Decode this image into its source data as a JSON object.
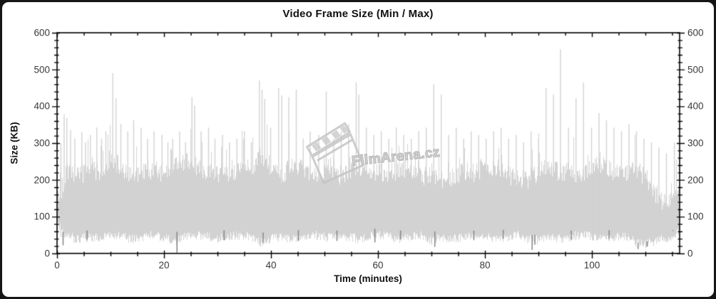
{
  "watermark": {
    "text": "FilmArena.cz",
    "icon": "clapperboard-icon"
  },
  "chart_data": {
    "type": "area",
    "title": "Video Frame Size (Min / Max)",
    "xlabel": "Time (minutes)",
    "ylabel": "Size (KB)",
    "xlim": [
      0,
      116.4
    ],
    "ylim": [
      0,
      600
    ],
    "x_major_ticks": [
      0,
      20,
      40,
      60,
      80,
      100
    ],
    "x_minor_tick_step": 5,
    "y_major_ticks": [
      0,
      100,
      200,
      300,
      400,
      500,
      600
    ],
    "y_minor_tick_step": 20,
    "right_axis_mirrors_left": true,
    "grid": false,
    "legend": "none",
    "colors": {
      "max_series": "#d2d2d2",
      "min_series": "#8a8a8a",
      "axis": "#000000",
      "tick_label": "#3a3a3a",
      "background": "#ffffff"
    },
    "series": [
      {
        "name": "Max",
        "color": "#d2d2d2",
        "representation": "dense noisy band read as lower/upper envelope (KB) plus isolated tall spikes",
        "t": [
          0,
          2,
          4,
          6,
          8,
          10,
          12,
          14,
          16,
          18,
          20,
          22,
          24,
          26,
          28,
          30,
          32,
          34,
          36,
          38,
          40,
          42,
          44,
          46,
          48,
          50,
          52,
          54,
          56,
          58,
          60,
          62,
          64,
          66,
          68,
          70,
          72,
          74,
          76,
          78,
          80,
          82,
          84,
          86,
          88,
          90,
          92,
          94,
          96,
          98,
          100,
          102,
          104,
          106,
          108,
          110,
          112,
          114,
          116
        ],
        "upper": [
          170,
          245,
          235,
          255,
          245,
          285,
          260,
          235,
          245,
          255,
          235,
          265,
          275,
          260,
          250,
          240,
          235,
          250,
          260,
          285,
          255,
          240,
          265,
          255,
          245,
          250,
          235,
          245,
          265,
          250,
          245,
          235,
          250,
          255,
          235,
          245,
          225,
          235,
          250,
          245,
          260,
          250,
          240,
          230,
          225,
          250,
          260,
          245,
          250,
          235,
          265,
          270,
          250,
          245,
          255,
          235,
          185,
          155,
          210
        ],
        "lower": [
          80,
          45,
          40,
          45,
          40,
          50,
          45,
          40,
          45,
          50,
          40,
          35,
          45,
          50,
          45,
          40,
          45,
          50,
          45,
          30,
          40,
          45,
          40,
          45,
          50,
          45,
          40,
          45,
          40,
          45,
          50,
          45,
          40,
          45,
          50,
          35,
          45,
          40,
          45,
          50,
          45,
          40,
          45,
          50,
          40,
          35,
          45,
          40,
          45,
          50,
          45,
          40,
          45,
          50,
          30,
          25,
          35,
          40,
          55
        ],
        "spikes": [
          [
            0.7,
            300
          ],
          [
            1.3,
            378
          ],
          [
            1.8,
            368
          ],
          [
            2.5,
            335
          ],
          [
            3.3,
            312
          ],
          [
            4.6,
            330
          ],
          [
            5.3,
            302
          ],
          [
            6.2,
            322
          ],
          [
            7.4,
            342
          ],
          [
            8.3,
            312
          ],
          [
            9.1,
            332
          ],
          [
            10.4,
            490
          ],
          [
            11.0,
            422
          ],
          [
            11.9,
            352
          ],
          [
            13.2,
            332
          ],
          [
            14.3,
            362
          ],
          [
            15.7,
            342
          ],
          [
            16.9,
            312
          ],
          [
            18.1,
            332
          ],
          [
            19.6,
            322
          ],
          [
            20.7,
            302
          ],
          [
            21.6,
            312
          ],
          [
            22.9,
            332
          ],
          [
            24.0,
            302
          ],
          [
            25.2,
            425
          ],
          [
            25.7,
            402
          ],
          [
            26.9,
            332
          ],
          [
            28.3,
            342
          ],
          [
            29.5,
            312
          ],
          [
            30.9,
            322
          ],
          [
            32.2,
            302
          ],
          [
            33.6,
            312
          ],
          [
            35.0,
            332
          ],
          [
            36.3,
            302
          ],
          [
            37.8,
            470
          ],
          [
            38.3,
            445
          ],
          [
            38.8,
            420
          ],
          [
            39.9,
            342
          ],
          [
            41.4,
            450
          ],
          [
            42.0,
            430
          ],
          [
            43.3,
            425
          ],
          [
            44.7,
            445
          ],
          [
            46.0,
            312
          ],
          [
            47.3,
            332
          ],
          [
            48.9,
            322
          ],
          [
            50.3,
            440
          ],
          [
            51.7,
            312
          ],
          [
            53.1,
            332
          ],
          [
            54.5,
            352
          ],
          [
            55.9,
            465
          ],
          [
            56.4,
            432
          ],
          [
            57.8,
            342
          ],
          [
            59.2,
            322
          ],
          [
            60.6,
            332
          ],
          [
            62.0,
            312
          ],
          [
            63.4,
            342
          ],
          [
            64.8,
            322
          ],
          [
            66.2,
            312
          ],
          [
            67.6,
            332
          ],
          [
            69.0,
            342
          ],
          [
            70.4,
            460
          ],
          [
            71.8,
            432
          ],
          [
            73.2,
            322
          ],
          [
            74.6,
            342
          ],
          [
            76.0,
            312
          ],
          [
            77.4,
            332
          ],
          [
            78.8,
            322
          ],
          [
            80.2,
            312
          ],
          [
            81.6,
            332
          ],
          [
            83.0,
            342
          ],
          [
            84.4,
            312
          ],
          [
            85.8,
            322
          ],
          [
            87.2,
            302
          ],
          [
            88.6,
            332
          ],
          [
            90.0,
            312
          ],
          [
            91.4,
            450
          ],
          [
            92.8,
            432
          ],
          [
            94.1,
            555
          ],
          [
            95.6,
            342
          ],
          [
            97.0,
            422
          ],
          [
            98.4,
            465
          ],
          [
            99.9,
            342
          ],
          [
            101.3,
            382
          ],
          [
            102.7,
            362
          ],
          [
            104.1,
            342
          ],
          [
            105.5,
            332
          ],
          [
            106.9,
            352
          ],
          [
            108.3,
            332
          ],
          [
            109.7,
            312
          ],
          [
            111.1,
            302
          ],
          [
            112.5,
            288
          ],
          [
            113.9,
            272
          ],
          [
            115.4,
            302
          ]
        ]
      },
      {
        "name": "Min",
        "color": "#8a8a8a",
        "representation": "noisy line band read as lower/upper envelope (KB) plus isolated downward dips",
        "t": [
          0,
          2,
          4,
          6,
          8,
          10,
          12,
          14,
          16,
          18,
          20,
          22,
          24,
          26,
          28,
          30,
          32,
          34,
          36,
          38,
          40,
          42,
          44,
          46,
          48,
          50,
          52,
          54,
          56,
          58,
          60,
          62,
          64,
          66,
          68,
          70,
          72,
          74,
          76,
          78,
          80,
          82,
          84,
          86,
          88,
          90,
          92,
          94,
          96,
          98,
          100,
          102,
          104,
          106,
          108,
          110,
          112,
          114,
          116
        ],
        "upper": [
          125,
          130,
          128,
          132,
          128,
          130,
          126,
          130,
          132,
          128,
          130,
          128,
          132,
          130,
          126,
          130,
          128,
          132,
          130,
          135,
          130,
          128,
          132,
          130,
          128,
          130,
          132,
          128,
          130,
          132,
          128,
          130,
          128,
          132,
          130,
          128,
          130,
          128,
          132,
          130,
          128,
          130,
          132,
          128,
          135,
          132,
          130,
          128,
          130,
          128,
          130,
          132,
          130,
          128,
          142,
          135,
          82,
          80,
          85
        ],
        "lower": [
          55,
          62,
          65,
          62,
          65,
          62,
          68,
          65,
          62,
          65,
          62,
          58,
          62,
          65,
          68,
          65,
          62,
          65,
          62,
          55,
          62,
          65,
          62,
          65,
          68,
          65,
          62,
          65,
          62,
          65,
          68,
          65,
          62,
          65,
          62,
          58,
          65,
          68,
          65,
          62,
          65,
          62,
          65,
          68,
          48,
          52,
          62,
          65,
          62,
          65,
          62,
          65,
          62,
          65,
          28,
          30,
          50,
          52,
          55
        ],
        "dips": [
          [
            1.1,
            22
          ],
          [
            5.6,
            38
          ],
          [
            22.4,
            2
          ],
          [
            31.2,
            36
          ],
          [
            38.5,
            28
          ],
          [
            45.1,
            34
          ],
          [
            52.3,
            34
          ],
          [
            59.4,
            30
          ],
          [
            64.2,
            38
          ],
          [
            70.6,
            18
          ],
          [
            77.9,
            36
          ],
          [
            83.4,
            40
          ],
          [
            88.8,
            10
          ],
          [
            89.3,
            24
          ],
          [
            96.1,
            38
          ],
          [
            103.2,
            40
          ],
          [
            108.6,
            12
          ],
          [
            110.3,
            18
          ]
        ]
      }
    ]
  }
}
